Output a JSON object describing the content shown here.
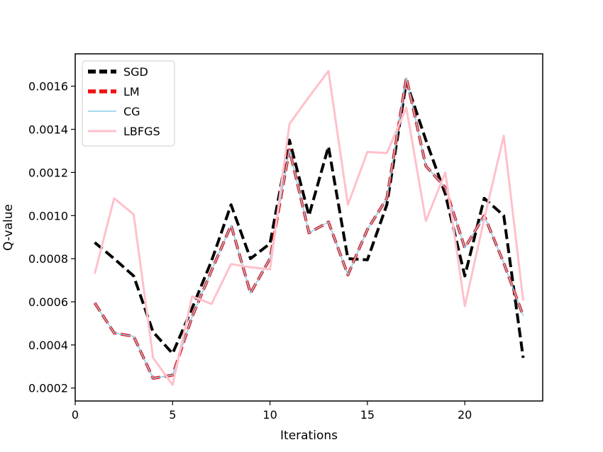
{
  "chart_data": {
    "type": "line",
    "title": "",
    "xlabel": "Iterations",
    "ylabel": "Q-value",
    "xlim": [
      0,
      24
    ],
    "ylim": [
      0.00014,
      0.00175
    ],
    "xticks": [
      0,
      5,
      10,
      15,
      20
    ],
    "xtick_labels": [
      "0",
      "5",
      "10",
      "15",
      "20"
    ],
    "yticks": [
      0.0002,
      0.0004,
      0.0006,
      0.0008,
      0.001,
      0.0012,
      0.0014,
      0.0016
    ],
    "ytick_labels": [
      "0.0002",
      "0.0004",
      "0.0006",
      "0.0008",
      "0.0010",
      "0.0012",
      "0.0014",
      "0.0016"
    ],
    "grid": false,
    "legend_position": "top-left",
    "x": [
      1,
      2,
      3,
      4,
      5,
      6,
      7,
      8,
      9,
      10,
      11,
      12,
      13,
      14,
      15,
      16,
      17,
      18,
      19,
      20,
      21,
      22,
      23
    ],
    "series": [
      {
        "name": "SGD",
        "color": "#000000",
        "style": "dashed",
        "width": 4,
        "values": [
          0.000875,
          0.0008,
          0.00072,
          0.00046,
          0.00036,
          0.00057,
          0.00079,
          0.00105,
          0.0008,
          0.00087,
          0.00135,
          0.001,
          0.00132,
          0.0008,
          0.000795,
          0.00105,
          0.00162,
          0.00135,
          0.0011,
          0.00072,
          0.00108,
          0.001,
          0.00034
        ]
      },
      {
        "name": "LM",
        "color": "#ee1111",
        "style": "dashed",
        "width": 4,
        "values": [
          0.000595,
          0.000455,
          0.00044,
          0.000245,
          0.00026,
          0.00053,
          0.000745,
          0.000955,
          0.00064,
          0.0008,
          0.001305,
          0.00092,
          0.00097,
          0.000725,
          0.000935,
          0.00108,
          0.00164,
          0.00123,
          0.00113,
          0.00085,
          0.001,
          0.00078,
          0.000535
        ]
      },
      {
        "name": "CG",
        "color": "#87ceeb",
        "style": "solid",
        "width": 1.5,
        "values": [
          0.000595,
          0.000455,
          0.00044,
          0.000245,
          0.00026,
          0.00053,
          0.000745,
          0.000955,
          0.00064,
          0.0008,
          0.001305,
          0.00092,
          0.00097,
          0.000725,
          0.000935,
          0.00108,
          0.00164,
          0.00123,
          0.00113,
          0.00085,
          0.001,
          0.00078,
          0.000535
        ]
      },
      {
        "name": "LBFGS",
        "color": "#ffc0cb",
        "style": "solid",
        "width": 3,
        "values": [
          0.00073,
          0.00108,
          0.001005,
          0.00034,
          0.000215,
          0.000625,
          0.00059,
          0.000775,
          0.00076,
          0.00075,
          0.001425,
          0.00155,
          0.00167,
          0.00105,
          0.001295,
          0.00129,
          0.0015,
          0.000975,
          0.0012,
          0.00058,
          0.000985,
          0.00137,
          0.000605
        ]
      }
    ]
  }
}
